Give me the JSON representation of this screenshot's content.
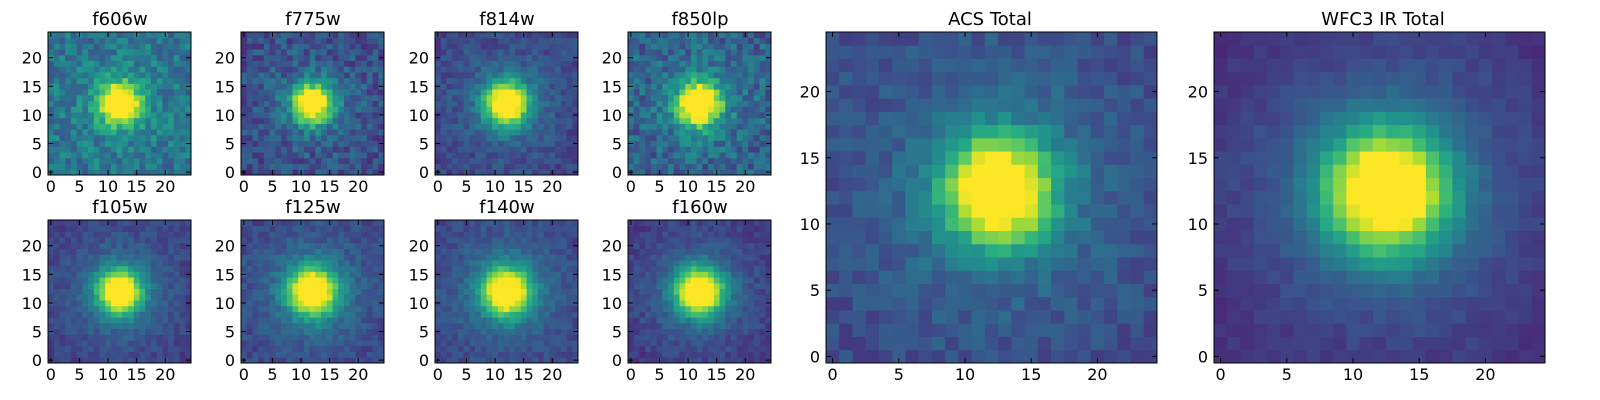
{
  "figure": {
    "colormap": "viridis",
    "color_range": [
      0,
      1
    ],
    "colors": {
      "colormap_low": "#440154",
      "colormap_mid": "#21918c",
      "colormap_high": "#fde725",
      "frame": "#000000",
      "background": "#ffffff"
    }
  },
  "chart_data": [
    {
      "type": "heatmap",
      "title": "f606w",
      "grid_size": 25,
      "xlim": [
        -0.5,
        24.5
      ],
      "ylim": [
        -0.5,
        24.5
      ],
      "xticks": [
        0,
        5,
        10,
        15,
        20
      ],
      "yticks": [
        0,
        5,
        10,
        15,
        20
      ],
      "center": [
        12,
        12
      ],
      "peak": 0.95,
      "core_width": 2.4,
      "halo_amplitude": 0.1,
      "halo_width": 7,
      "background_level": 0.38,
      "noise_level": 0.13,
      "seed": 11
    },
    {
      "type": "heatmap",
      "title": "f775w",
      "grid_size": 25,
      "xlim": [
        -0.5,
        24.5
      ],
      "ylim": [
        -0.5,
        24.5
      ],
      "xticks": [
        0,
        5,
        10,
        15,
        20
      ],
      "yticks": [
        0,
        5,
        10,
        15,
        20
      ],
      "center": [
        12,
        12
      ],
      "peak": 0.95,
      "core_width": 2.4,
      "halo_amplitude": 0.12,
      "halo_width": 7,
      "background_level": 0.23,
      "noise_level": 0.12,
      "seed": 23
    },
    {
      "type": "heatmap",
      "title": "f814w",
      "grid_size": 25,
      "xlim": [
        -0.5,
        24.5
      ],
      "ylim": [
        -0.5,
        24.5
      ],
      "xticks": [
        0,
        5,
        10,
        15,
        20
      ],
      "yticks": [
        0,
        5,
        10,
        15,
        20
      ],
      "center": [
        12,
        12
      ],
      "peak": 0.95,
      "core_width": 2.6,
      "halo_amplitude": 0.16,
      "halo_width": 7,
      "background_level": 0.2,
      "noise_level": 0.08,
      "seed": 37
    },
    {
      "type": "heatmap",
      "title": "f850lp",
      "grid_size": 25,
      "xlim": [
        -0.5,
        24.5
      ],
      "ylim": [
        -0.5,
        24.5
      ],
      "xticks": [
        0,
        5,
        10,
        15,
        20
      ],
      "yticks": [
        0,
        5,
        10,
        15,
        20
      ],
      "center": [
        12,
        12
      ],
      "peak": 0.95,
      "core_width": 2.6,
      "halo_amplitude": 0.12,
      "halo_width": 7,
      "background_level": 0.3,
      "noise_level": 0.14,
      "seed": 49
    },
    {
      "type": "heatmap",
      "title": "f105w",
      "grid_size": 25,
      "xlim": [
        -0.5,
        24.5
      ],
      "ylim": [
        -0.5,
        24.5
      ],
      "xticks": [
        0,
        5,
        10,
        15,
        20
      ],
      "yticks": [
        0,
        5,
        10,
        15,
        20
      ],
      "center": [
        12,
        12
      ],
      "peak": 0.95,
      "core_width": 2.6,
      "halo_amplitude": 0.2,
      "halo_width": 7.5,
      "background_level": 0.17,
      "noise_level": 0.06,
      "seed": 61
    },
    {
      "type": "heatmap",
      "title": "f125w",
      "grid_size": 25,
      "xlim": [
        -0.5,
        24.5
      ],
      "ylim": [
        -0.5,
        24.5
      ],
      "xticks": [
        0,
        5,
        10,
        15,
        20
      ],
      "yticks": [
        0,
        5,
        10,
        15,
        20
      ],
      "center": [
        12,
        12
      ],
      "peak": 0.95,
      "core_width": 2.8,
      "halo_amplitude": 0.2,
      "halo_width": 7.5,
      "background_level": 0.2,
      "noise_level": 0.07,
      "seed": 73
    },
    {
      "type": "heatmap",
      "title": "f140w",
      "grid_size": 25,
      "xlim": [
        -0.5,
        24.5
      ],
      "ylim": [
        -0.5,
        24.5
      ],
      "xticks": [
        0,
        5,
        10,
        15,
        20
      ],
      "yticks": [
        0,
        5,
        10,
        15,
        20
      ],
      "center": [
        12,
        12
      ],
      "peak": 0.95,
      "core_width": 2.8,
      "halo_amplitude": 0.2,
      "halo_width": 7.5,
      "background_level": 0.2,
      "noise_level": 0.06,
      "seed": 89
    },
    {
      "type": "heatmap",
      "title": "f160w",
      "grid_size": 25,
      "xlim": [
        -0.5,
        24.5
      ],
      "ylim": [
        -0.5,
        24.5
      ],
      "xticks": [
        0,
        5,
        10,
        15,
        20
      ],
      "yticks": [
        0,
        5,
        10,
        15,
        20
      ],
      "center": [
        12,
        12
      ],
      "peak": 0.95,
      "core_width": 2.8,
      "halo_amplitude": 0.22,
      "halo_width": 7.5,
      "background_level": 0.15,
      "noise_level": 0.06,
      "seed": 97
    },
    {
      "type": "heatmap",
      "title": "ACS Total",
      "grid_size": 25,
      "xlim": [
        -0.5,
        24.5
      ],
      "ylim": [
        -0.5,
        24.5
      ],
      "xticks": [
        0,
        5,
        10,
        15,
        20
      ],
      "yticks": [
        0,
        5,
        10,
        15,
        20
      ],
      "center": [
        12.5,
        12.5
      ],
      "peak": 0.95,
      "core_width": 2.8,
      "halo_amplitude": 0.16,
      "halo_width": 7.5,
      "background_level": 0.22,
      "noise_level": 0.07,
      "seed": 131
    },
    {
      "type": "heatmap",
      "title": "WFC3 IR Total",
      "grid_size": 25,
      "xlim": [
        -0.5,
        24.5
      ],
      "ylim": [
        -0.5,
        24.5
      ],
      "xticks": [
        0,
        5,
        10,
        15,
        20
      ],
      "yticks": [
        0,
        5,
        10,
        15,
        20
      ],
      "center": [
        12.5,
        12.5
      ],
      "peak": 0.95,
      "core_width": 3.2,
      "halo_amplitude": 0.24,
      "halo_width": 8,
      "background_level": 0.12,
      "noise_level": 0.035,
      "seed": 149
    }
  ]
}
